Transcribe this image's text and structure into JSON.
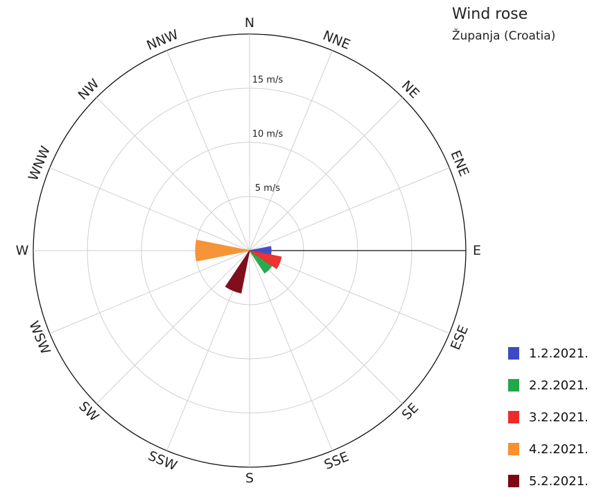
{
  "chart_data": {
    "type": "rose",
    "title": "Wind rose",
    "subtitle": "Županja (Croatia)",
    "unit": "m/s",
    "directions": [
      "N",
      "NNE",
      "NE",
      "ENE",
      "E",
      "ESE",
      "SE",
      "SSE",
      "S",
      "SSW",
      "SW",
      "WSW",
      "W",
      "WNW",
      "NW",
      "NNW"
    ],
    "direction_labels": [
      "N",
      "NNE",
      "NE",
      "ENE",
      "E",
      "ESE",
      "SE",
      "SSE",
      "S",
      "SSW",
      "SW",
      "WSW",
      "W",
      "WNW",
      "NW",
      "NNW"
    ],
    "rlim": [
      0,
      20
    ],
    "ring_values": [
      5,
      10,
      15,
      20
    ],
    "ring_labels": [
      "5 m/s",
      "10 m/s",
      "15 m/s"
    ],
    "grid": true,
    "legend_position": "bottom-right",
    "series": [
      {
        "name": "1.2.2021.",
        "color": "#3c4bc4",
        "direction": "E",
        "speed": 2
      },
      {
        "name": "2.2.2021.",
        "color": "#22a84a",
        "direction": "SE",
        "speed": 2.5
      },
      {
        "name": "3.2.2021.",
        "color": "#ee2b2b",
        "direction": "ESE",
        "speed": 3
      },
      {
        "name": "4.2.2021.",
        "color": "#f7902f",
        "direction": "W",
        "speed": 5
      },
      {
        "name": "5.2.2021.",
        "color": "#7d0514",
        "direction": "SSW",
        "speed": 4
      }
    ]
  }
}
